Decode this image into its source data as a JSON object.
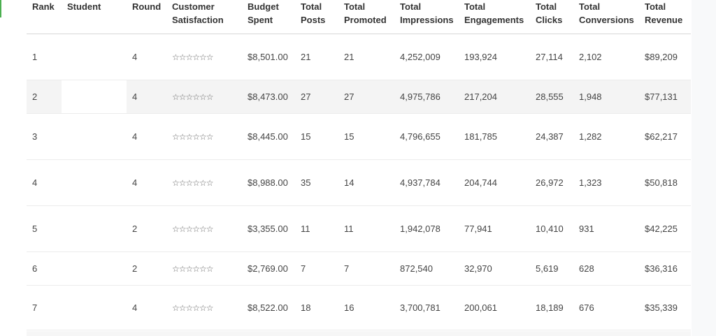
{
  "table": {
    "headers": [
      "Rank",
      "Student",
      "Round",
      "Customer Satisfaction",
      "Budget Spent",
      "Total Posts",
      "Total Promoted",
      "Total Impressions",
      "Total Engagements",
      "Total Clicks",
      "Total Conversions",
      "Total Revenue"
    ],
    "star_glyph": "☆☆☆☆☆☆",
    "rows": [
      {
        "rank": "1",
        "student": "",
        "round": "4",
        "budget": "$8,501.00",
        "posts": "21",
        "promoted": "21",
        "impressions": "4,252,009",
        "engagements": "193,924",
        "clicks": "27,114",
        "conversions": "2,102",
        "revenue": "$89,209"
      },
      {
        "rank": "2",
        "student": "",
        "round": "4",
        "budget": "$8,473.00",
        "posts": "27",
        "promoted": "27",
        "impressions": "4,975,786",
        "engagements": "217,204",
        "clicks": "28,555",
        "conversions": "1,948",
        "revenue": "$77,131"
      },
      {
        "rank": "3",
        "student": "",
        "round": "4",
        "budget": "$8,445.00",
        "posts": "15",
        "promoted": "15",
        "impressions": "4,796,655",
        "engagements": "181,785",
        "clicks": "24,387",
        "conversions": "1,282",
        "revenue": "$62,217"
      },
      {
        "rank": "4",
        "student": "",
        "round": "4",
        "budget": "$8,988.00",
        "posts": "35",
        "promoted": "14",
        "impressions": "4,937,784",
        "engagements": "204,744",
        "clicks": "26,972",
        "conversions": "1,323",
        "revenue": "$50,818"
      },
      {
        "rank": "5",
        "student": "",
        "round": "2",
        "budget": "$3,355.00",
        "posts": "11",
        "promoted": "11",
        "impressions": "1,942,078",
        "engagements": "77,941",
        "clicks": "10,410",
        "conversions": "931",
        "revenue": "$42,225"
      },
      {
        "rank": "6",
        "student": "",
        "round": "2",
        "budget": "$2,769.00",
        "posts": "7",
        "promoted": "7",
        "impressions": "872,540",
        "engagements": "32,970",
        "clicks": "5,619",
        "conversions": "628",
        "revenue": "$36,316"
      },
      {
        "rank": "7",
        "student": "",
        "round": "4",
        "budget": "$8,522.00",
        "posts": "18",
        "promoted": "16",
        "impressions": "3,700,781",
        "engagements": "200,061",
        "clicks": "18,189",
        "conversions": "676",
        "revenue": "$35,339"
      }
    ]
  },
  "colors": {
    "accent": "#4caf50",
    "row_alt": "#f4f4f4",
    "gutter": "#f8f9fa"
  }
}
